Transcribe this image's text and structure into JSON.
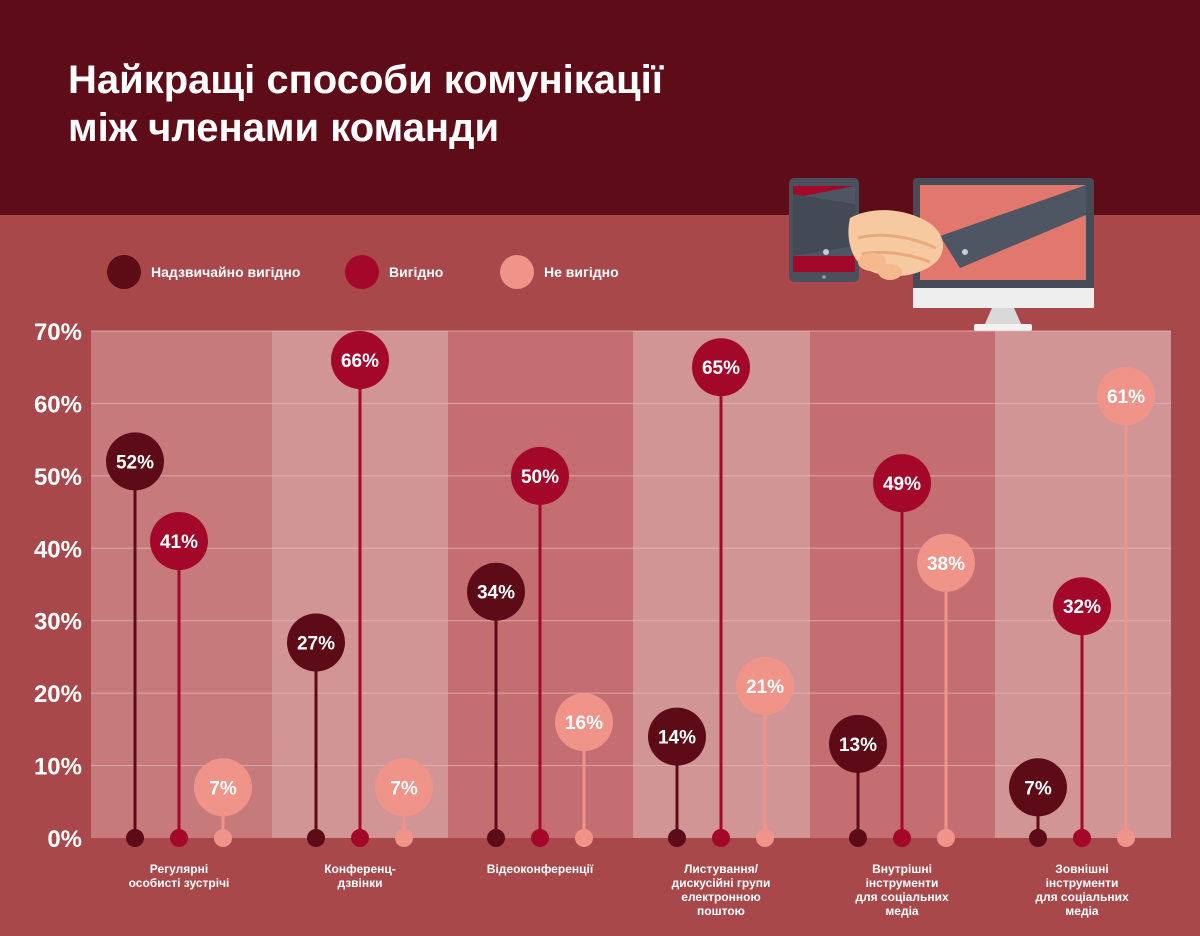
{
  "title_lines": [
    "Найкращі способи комунікації",
    "між членами команди"
  ],
  "legend": [
    {
      "label": "Надзвичайно вигідно",
      "color": "#5c0b17"
    },
    {
      "label": "Вигідно",
      "color": "#a3082a"
    },
    {
      "label": "Не вигідно",
      "color": "#f0948a"
    }
  ],
  "chart_data": {
    "type": "lollipop",
    "categories": [
      "Регулярні особисті зустрічі",
      "Конференц-дзвінки",
      "Відеоконференції",
      "Листування/ дискусійні групи електронною поштою",
      "Внутрішні інструменти для соціальних медіа",
      "Зовнішні інструменти для соціальних медіа"
    ],
    "category_label_lines": [
      [
        "Регулярні",
        "особисті зустрічі"
      ],
      [
        "Конференц-",
        "дзвінки"
      ],
      [
        "Відеоконференції"
      ],
      [
        "Листування/",
        "дискусійні групи",
        "електронною",
        "поштою"
      ],
      [
        "Внутрішні",
        "інструменти",
        "для соціальних",
        "медіа"
      ],
      [
        "Зовнішні",
        "інструменти",
        "для соціальних",
        "медіа"
      ]
    ],
    "series": [
      {
        "name": "Надзвичайно вигідно",
        "values": [
          52,
          27,
          34,
          14,
          13,
          7
        ],
        "color": "#5c0b17"
      },
      {
        "name": "Вигідно",
        "values": [
          41,
          66,
          50,
          65,
          49,
          32
        ],
        "color": "#a3082a"
      },
      {
        "name": "Не вигідно",
        "values": [
          7,
          7,
          16,
          21,
          38,
          61
        ],
        "color": "#f0948a"
      }
    ],
    "value_suffix": "%",
    "ylim": [
      0,
      70
    ],
    "yticks": [
      "0%",
      "10%",
      "20%",
      "30%",
      "40%",
      "50%",
      "60%",
      "70%"
    ],
    "xlabel": "",
    "ylabel": "",
    "grid": true,
    "legend_position": "top-left"
  }
}
